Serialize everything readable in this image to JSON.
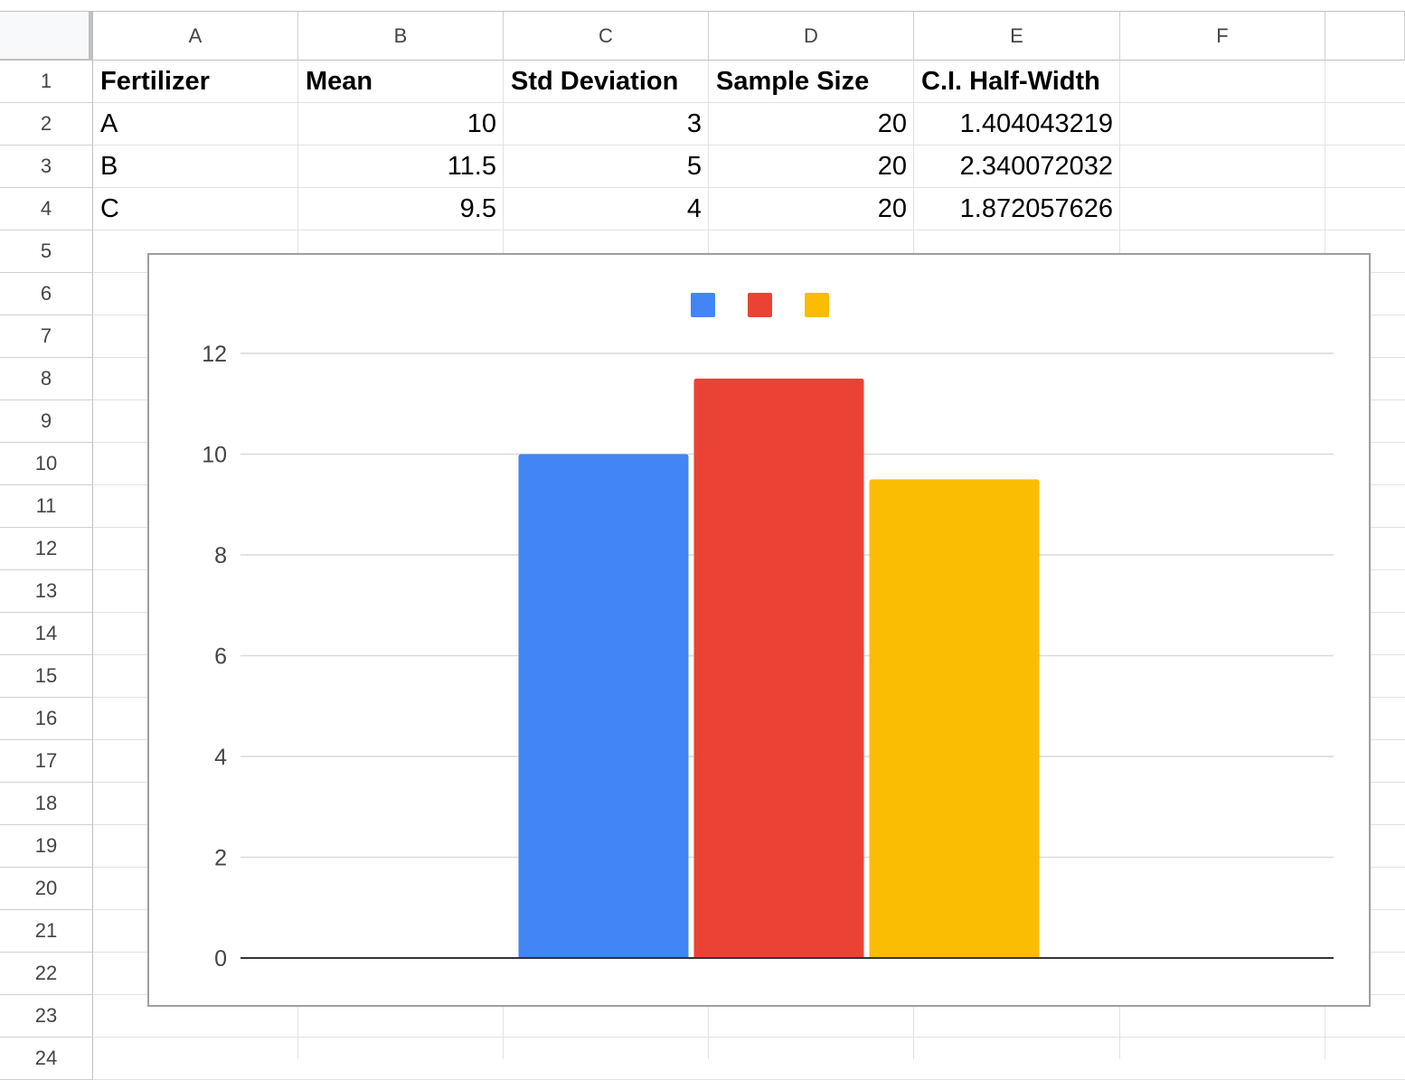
{
  "columns": [
    "A",
    "B",
    "C",
    "D",
    "E",
    "F"
  ],
  "rows": [
    "1",
    "2",
    "3",
    "4",
    "5",
    "6",
    "7",
    "8",
    "9",
    "10",
    "11",
    "12",
    "13",
    "14",
    "15",
    "16",
    "17",
    "18",
    "19",
    "20",
    "21",
    "22",
    "23",
    "24"
  ],
  "table": {
    "headers": [
      "Fertilizer",
      "Mean",
      "Std Deviation",
      "Sample Size",
      "C.I. Half-Width"
    ],
    "rows": [
      [
        "A",
        "10",
        "3",
        "20",
        "1.404043219"
      ],
      [
        "B",
        "11.5",
        "5",
        "20",
        "2.340072032"
      ],
      [
        "C",
        "9.5",
        "4",
        "20",
        "1.872057626"
      ]
    ]
  },
  "colors": {
    "series_a": "#4285f4",
    "series_b": "#ea4335",
    "series_c": "#fbbc04",
    "grid": "#d9d9d9",
    "baseline": "#333333"
  },
  "chart_data": {
    "type": "bar",
    "categories": [
      ""
    ],
    "series": [
      {
        "values": [
          10
        ],
        "color": "#4285f4"
      },
      {
        "values": [
          11.5
        ],
        "color": "#ea4335"
      },
      {
        "values": [
          9.5
        ],
        "color": "#fbbc04"
      }
    ],
    "yticks": [
      "0",
      "2",
      "4",
      "6",
      "8",
      "10",
      "12"
    ],
    "ylim": [
      0,
      13.2
    ],
    "grid": true,
    "legend": "top-center"
  }
}
